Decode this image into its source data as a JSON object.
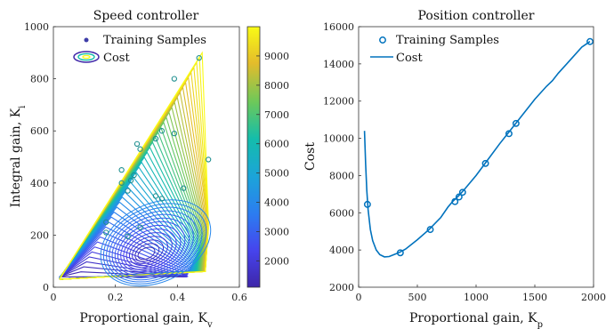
{
  "chart_data": [
    {
      "type": "contour",
      "title": "Speed controller",
      "xlabel": "Proportional gain, K",
      "xlabel_sub": "v",
      "ylabel": "Integral gain, K",
      "ylabel_sub": "i",
      "xlim": [
        0,
        0.6
      ],
      "ylim": [
        0,
        1000
      ],
      "xticks": [
        0,
        0.2,
        0.4,
        0.6
      ],
      "xtick_labels": [
        "0",
        "0.2",
        "0.4",
        "0.6"
      ],
      "yticks": [
        0,
        200,
        400,
        600,
        800,
        1000
      ],
      "ytick_labels": [
        "0",
        "200",
        "400",
        "600",
        "800",
        "1000"
      ],
      "legend": [
        "Training Samples",
        "Cost"
      ],
      "legend_position": "top",
      "colorbar": {
        "range": [
          1100,
          10000
        ],
        "ticks": [
          2000,
          3000,
          4000,
          5000,
          6000,
          7000,
          8000,
          9000
        ],
        "tick_labels": [
          "2000",
          "3000",
          "4000",
          "5000",
          "6000",
          "7000",
          "8000",
          "9000"
        ],
        "colormap": "parula"
      },
      "samples": [
        {
          "x": 0.47,
          "y": 880
        },
        {
          "x": 0.39,
          "y": 800
        },
        {
          "x": 0.35,
          "y": 600
        },
        {
          "x": 0.39,
          "y": 590
        },
        {
          "x": 0.33,
          "y": 570
        },
        {
          "x": 0.27,
          "y": 550
        },
        {
          "x": 0.28,
          "y": 530
        },
        {
          "x": 0.22,
          "y": 450
        },
        {
          "x": 0.26,
          "y": 430
        },
        {
          "x": 0.25,
          "y": 410
        },
        {
          "x": 0.22,
          "y": 400
        },
        {
          "x": 0.42,
          "y": 380
        },
        {
          "x": 0.24,
          "y": 370
        },
        {
          "x": 0.33,
          "y": 350
        },
        {
          "x": 0.35,
          "y": 340
        },
        {
          "x": 0.5,
          "y": 490
        },
        {
          "x": 0.17,
          "y": 250
        },
        {
          "x": 0.17,
          "y": 210
        },
        {
          "x": 0.28,
          "y": 230
        },
        {
          "x": 0.24,
          "y": 195
        }
      ]
    },
    {
      "type": "line",
      "title": "Position controller",
      "xlabel": "Proportional gain, K",
      "xlabel_sub": "p",
      "ylabel": "Cost",
      "xlim": [
        0,
        2000
      ],
      "ylim": [
        2000,
        16000
      ],
      "xticks": [
        0,
        500,
        1000,
        1500,
        2000
      ],
      "xtick_labels": [
        "0",
        "500",
        "1000",
        "1500",
        "2000"
      ],
      "yticks": [
        2000,
        4000,
        6000,
        8000,
        10000,
        12000,
        14000,
        16000
      ],
      "ytick_labels": [
        "2000",
        "4000",
        "6000",
        "8000",
        "10000",
        "12000",
        "14000",
        "16000"
      ],
      "legend": [
        "Training Samples",
        "Cost"
      ],
      "legend_position": "top-left",
      "series": [
        {
          "name": "Cost",
          "x": [
            50,
            60,
            70,
            80,
            100,
            120,
            150,
            180,
            220,
            260,
            300,
            350,
            400,
            500,
            600,
            700,
            760,
            800,
            850,
            900,
            1000,
            1100,
            1200,
            1300,
            1400,
            1500,
            1600,
            1650,
            1700,
            1800,
            1900,
            1970
          ],
          "y": [
            10400,
            8600,
            7200,
            6200,
            5100,
            4500,
            4000,
            3750,
            3630,
            3650,
            3750,
            3880,
            4050,
            4550,
            5100,
            5750,
            6300,
            6600,
            6900,
            7250,
            8000,
            8850,
            9700,
            10500,
            11300,
            12100,
            12800,
            13100,
            13500,
            14200,
            14900,
            15200
          ]
        }
      ],
      "samples": [
        {
          "x": 75,
          "y": 6450
        },
        {
          "x": 355,
          "y": 3850
        },
        {
          "x": 610,
          "y": 5100
        },
        {
          "x": 820,
          "y": 6600
        },
        {
          "x": 855,
          "y": 6850
        },
        {
          "x": 885,
          "y": 7100
        },
        {
          "x": 1080,
          "y": 8650
        },
        {
          "x": 1280,
          "y": 10250
        },
        {
          "x": 1340,
          "y": 10800
        },
        {
          "x": 1970,
          "y": 15200
        }
      ]
    }
  ]
}
